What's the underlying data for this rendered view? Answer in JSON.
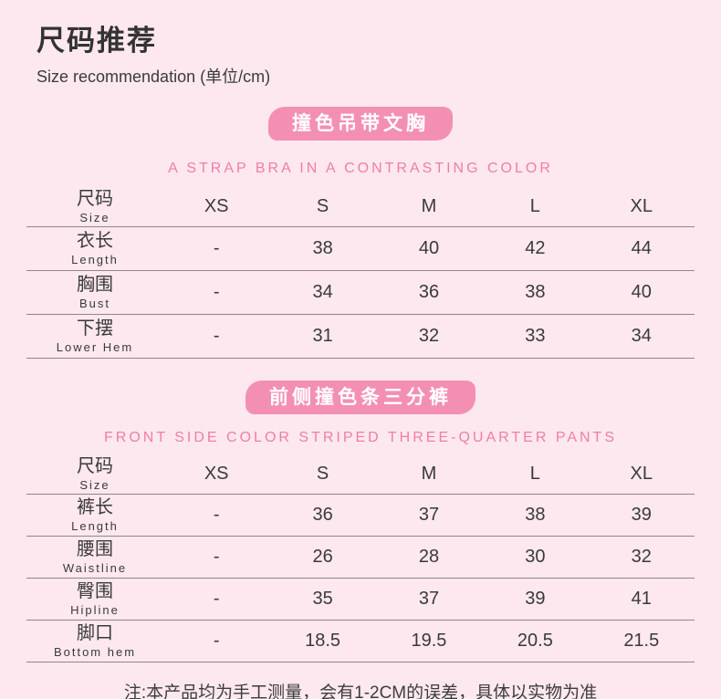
{
  "page": {
    "title": "尺码推荐",
    "subtitle": "Size recommendation (单位/cm)",
    "note": "注:本产品均为手工测量，会有1-2CM的误差，具体以实物为准"
  },
  "colors": {
    "background": "#fce8ee",
    "badge_fill": "#f48fb4",
    "badge_text": "#ffffff",
    "caption_pink": "#f37ca9",
    "body_text": "#3a3a3a",
    "divider": "#8f878b"
  },
  "sections": [
    {
      "badge": "撞色吊带文胸",
      "caption": "A STRAP BRA IN A CONTRASTING COLOR",
      "table": {
        "header": {
          "label_cn": "尺码",
          "label_en": "Size",
          "sizes": [
            "XS",
            "S",
            "M",
            "L",
            "XL"
          ]
        },
        "rows": [
          {
            "label_cn": "衣长",
            "label_en": "Length",
            "values": [
              "-",
              "38",
              "40",
              "42",
              "44"
            ]
          },
          {
            "label_cn": "胸围",
            "label_en": "Bust",
            "values": [
              "-",
              "34",
              "36",
              "38",
              "40"
            ]
          },
          {
            "label_cn": "下摆",
            "label_en": "Lower Hem",
            "values": [
              "-",
              "31",
              "32",
              "33",
              "34"
            ]
          }
        ]
      }
    },
    {
      "badge": "前侧撞色条三分裤",
      "caption": "FRONT SIDE COLOR STRIPED THREE-QUARTER PANTS",
      "table": {
        "header": {
          "label_cn": "尺码",
          "label_en": "Size",
          "sizes": [
            "XS",
            "S",
            "M",
            "L",
            "XL"
          ]
        },
        "rows": [
          {
            "label_cn": "裤长",
            "label_en": "Length",
            "values": [
              "-",
              "36",
              "37",
              "38",
              "39"
            ]
          },
          {
            "label_cn": "腰围",
            "label_en": "Waistline",
            "values": [
              "-",
              "26",
              "28",
              "30",
              "32"
            ]
          },
          {
            "label_cn": "臀围",
            "label_en": "Hipline",
            "values": [
              "-",
              "35",
              "37",
              "39",
              "41"
            ]
          },
          {
            "label_cn": "脚口",
            "label_en": "Bottom hem",
            "values": [
              "-",
              "18.5",
              "19.5",
              "20.5",
              "21.5"
            ]
          }
        ]
      }
    }
  ]
}
